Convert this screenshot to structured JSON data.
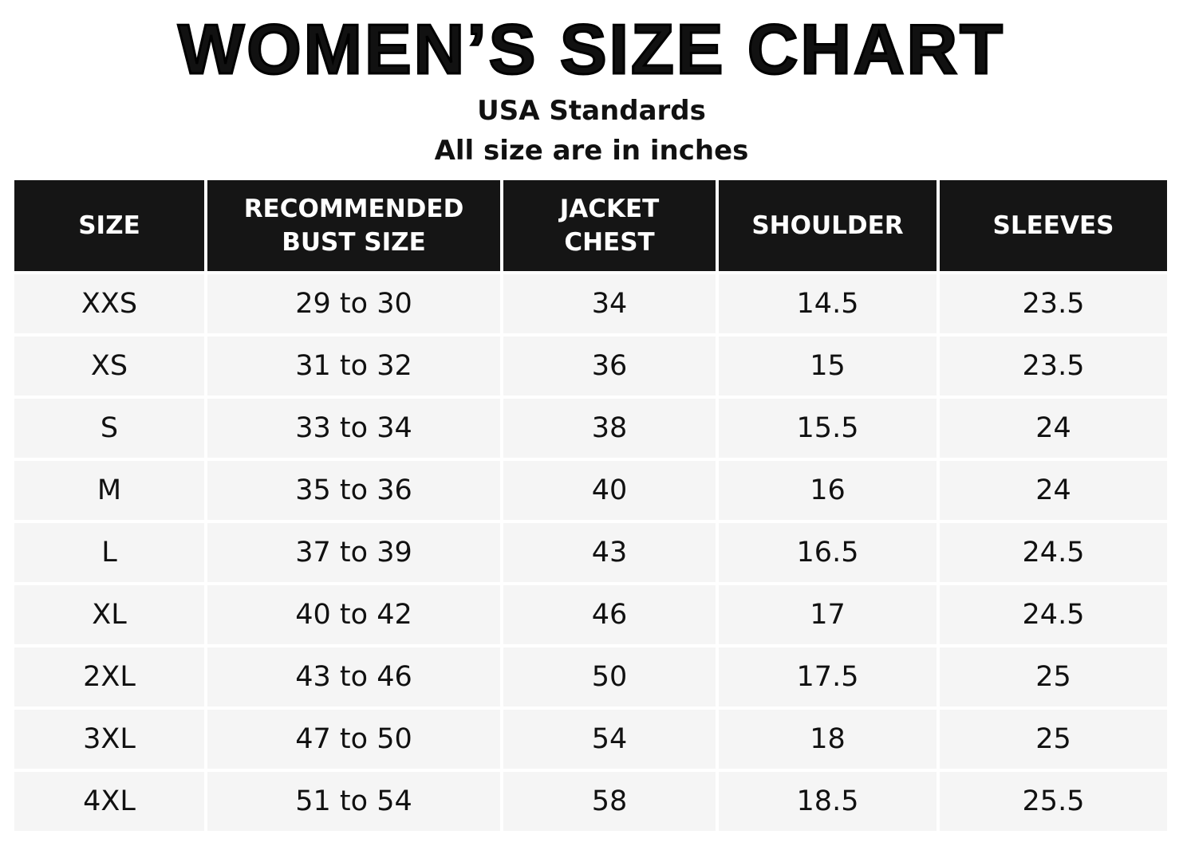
{
  "header": {
    "title": "WOMEN’S SIZE CHART",
    "subtitle": "USA Standards",
    "note": "All size are in inches"
  },
  "table": {
    "columns": [
      "SIZE",
      "RECOMMENDED BUST SIZE",
      "JACKET CHEST",
      "SHOULDER",
      "SLEEVES"
    ],
    "rows": [
      [
        "XXS",
        "29 to 30",
        34,
        14.5,
        23.5
      ],
      [
        "XS",
        "31 to 32",
        36,
        15,
        23.5
      ],
      [
        "S",
        "33 to 34",
        38,
        15.5,
        24
      ],
      [
        "M",
        "35 to 36",
        40,
        16,
        24
      ],
      [
        "L",
        "37 to 39",
        43,
        16.5,
        24.5
      ],
      [
        "XL",
        "40 to 42",
        46,
        17,
        24.5
      ],
      [
        "2XL",
        "43 to 46",
        50,
        17.5,
        25
      ],
      [
        "3XL",
        "47 to 50",
        54,
        18,
        25
      ],
      [
        "4XL",
        "51 to 54",
        58,
        18.5,
        25.5
      ]
    ]
  }
}
